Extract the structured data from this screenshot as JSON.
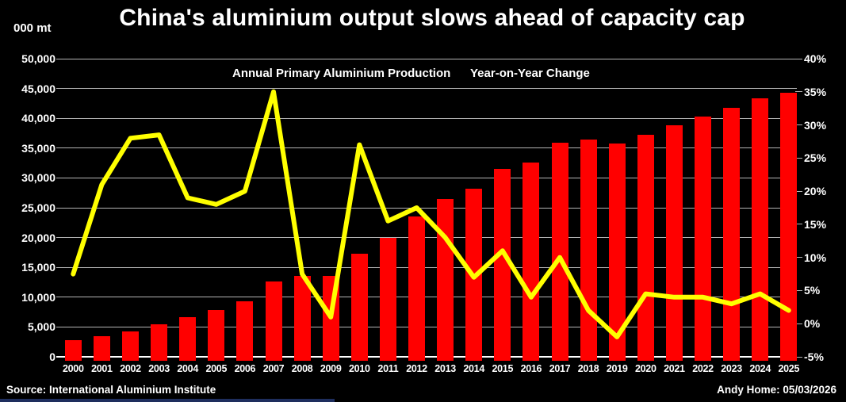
{
  "header": {
    "title": "China's aluminium output slows ahead of capacity cap",
    "units_label": "000 mt"
  },
  "legend": {
    "production_label": "Annual Primary Aluminium Production",
    "yoy_label": "Year-on-Year Change"
  },
  "chart_data": {
    "type": "combo",
    "title": "China's aluminium output slows ahead of capacity cap",
    "categories": [
      "2000",
      "2001",
      "2002",
      "2003",
      "2004",
      "2005",
      "2006",
      "2007",
      "2008",
      "2009",
      "2010",
      "2011",
      "2012",
      "2013",
      "2014",
      "2015",
      "2016",
      "2017",
      "2018",
      "2019",
      "2020",
      "2021",
      "2022",
      "2023",
      "2024",
      "2025"
    ],
    "series": [
      {
        "name": "Annual Primary Aluminium Production",
        "type": "bar",
        "axis": "left",
        "units": "000 mt",
        "color": "#ff0000",
        "values": [
          2800,
          3400,
          4300,
          5500,
          6600,
          7800,
          9300,
          12600,
          13500,
          13600,
          17300,
          20000,
          23500,
          26500,
          28200,
          31500,
          32600,
          35900,
          36400,
          35800,
          37300,
          38800,
          40300,
          41700,
          43300,
          44300
        ]
      },
      {
        "name": "Year-on-Year Change",
        "type": "line",
        "axis": "right",
        "units": "%",
        "color": "#ffff00",
        "values": [
          7.5,
          21,
          28,
          28.5,
          19,
          18,
          20,
          35,
          7.5,
          1,
          27,
          15.5,
          17.5,
          13,
          7,
          11,
          4,
          10,
          2,
          -2,
          4.5,
          4,
          4,
          3,
          4.5,
          2
        ]
      }
    ],
    "left_axis": {
      "label": "000 mt",
      "min": 0,
      "max": 50000,
      "step": 5000,
      "tick_labels": [
        "0",
        "5,000",
        "10,000",
        "15,000",
        "20,000",
        "25,000",
        "30,000",
        "35,000",
        "40,000",
        "45,000",
        "50,000"
      ]
    },
    "right_axis": {
      "min": -5,
      "max": 40,
      "step": 5,
      "tick_labels": [
        "-5%",
        "0%",
        "5%",
        "10%",
        "15%",
        "20%",
        "25%",
        "30%",
        "35%",
        "40%"
      ]
    },
    "grid": true,
    "legend_position": "top"
  },
  "footer": {
    "source": "Source: International Aluminium Institute",
    "credit": "Andy Home: 05/03/2026"
  },
  "colors": {
    "background": "#000000",
    "text": "#ffffff",
    "gridline": "#b5b5b5",
    "axis_line": "#ffffff",
    "bar": "#ff0000",
    "line": "#ffff00",
    "accent_strip": "#1e2e5e"
  }
}
